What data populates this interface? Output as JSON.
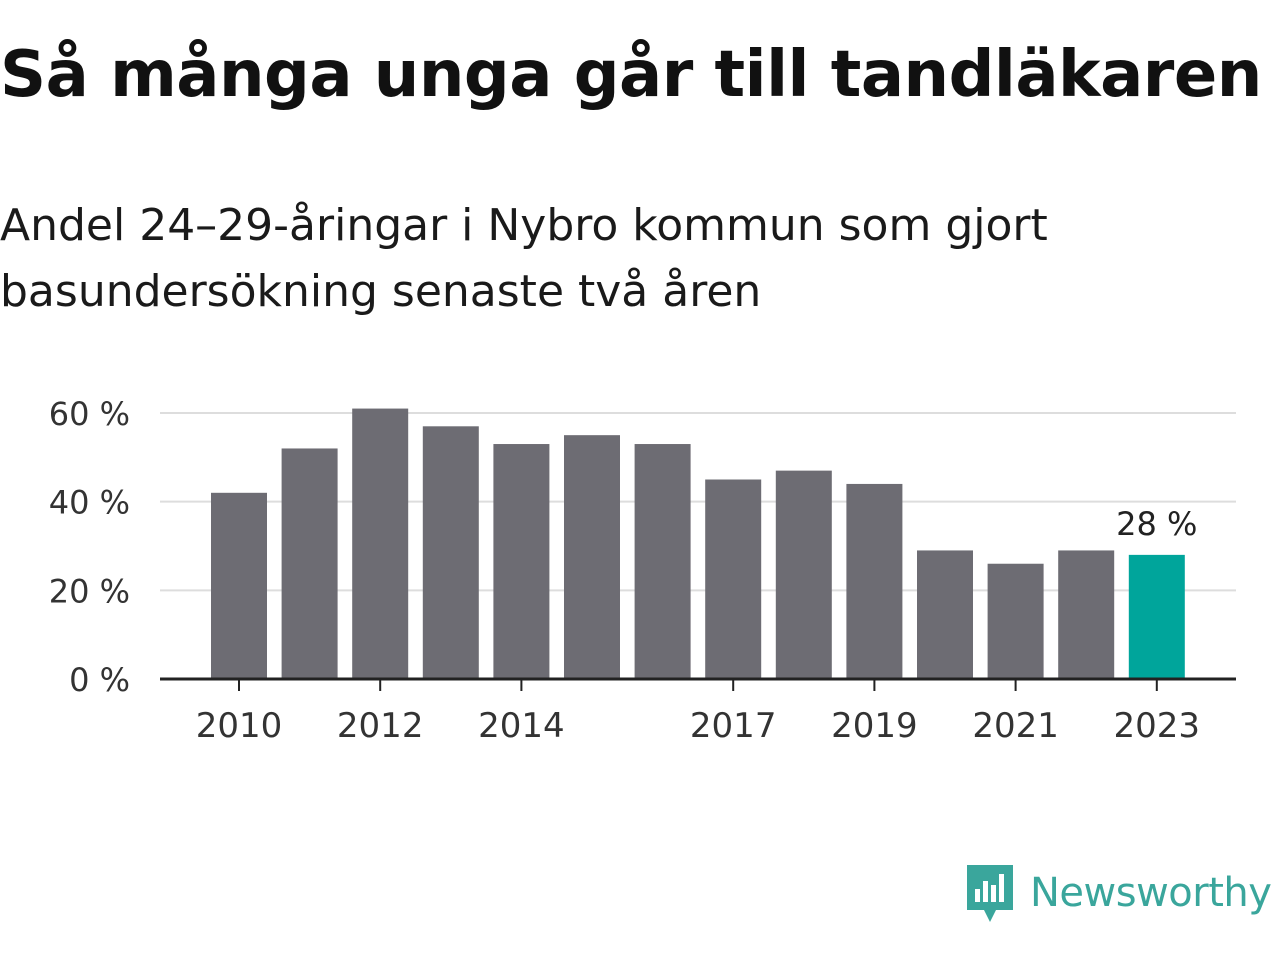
{
  "header": {
    "title": "Så många unga går till tandläkaren",
    "subtitle": "Andel 24–29-åringar i Nybro kommun som gjort basundersökning senaste två åren"
  },
  "brand": {
    "name": "Newsworthy",
    "color": "#3aa69c",
    "icon": "bar-chart-speech-bubble-icon"
  },
  "chart_data": {
    "type": "bar",
    "categories": [
      "2010",
      "2011",
      "2012",
      "2013",
      "2014",
      "2015",
      "2016",
      "2017",
      "2018",
      "2019",
      "2020",
      "2021",
      "2022",
      "2023"
    ],
    "values": [
      42,
      52,
      61,
      57,
      53,
      55,
      53,
      45,
      47,
      44,
      29,
      26,
      29,
      28
    ],
    "x_tick_labels": [
      "2010",
      "2012",
      "2014",
      "2017",
      "2019",
      "2021",
      "2023"
    ],
    "y_ticks": [
      0,
      20,
      40,
      60
    ],
    "y_tick_labels": [
      "0 %",
      "20 %",
      "40 %",
      "60 %"
    ],
    "ylim": [
      0,
      60
    ],
    "grid": true,
    "colors": {
      "bar": "#6d6c73",
      "highlight": "#00a59b",
      "grid": "#dddddd",
      "axis": "#222222"
    },
    "highlight_index": 13,
    "annotation": {
      "index": 13,
      "text": "28 %"
    },
    "title": "",
    "xlabel": "",
    "ylabel": ""
  }
}
